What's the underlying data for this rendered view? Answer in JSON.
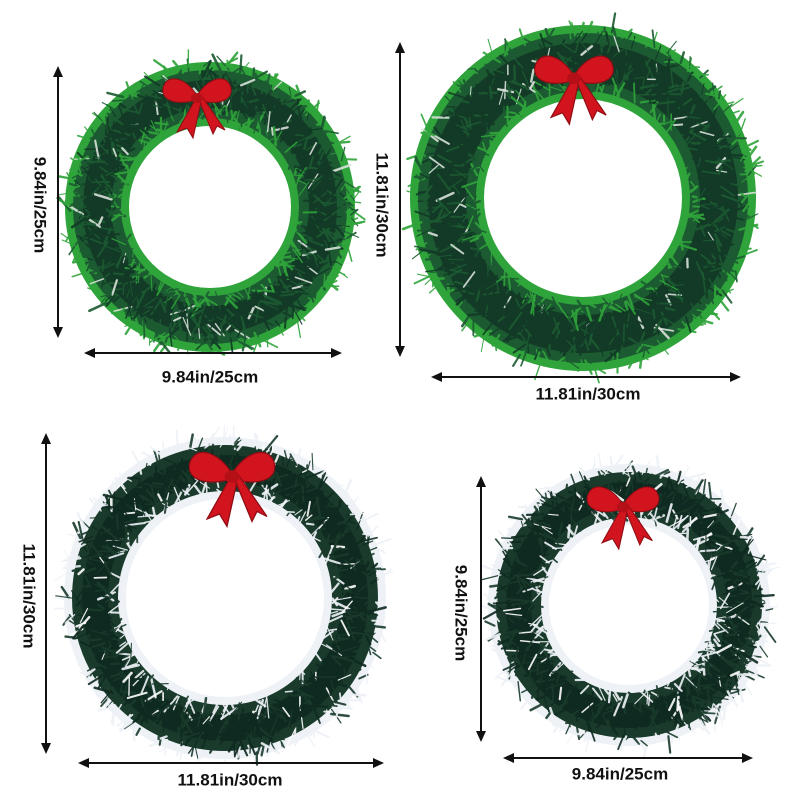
{
  "wreaths": [
    {
      "id": "small-green",
      "style": "green-tipped",
      "colors": {
        "inner": "#123a26",
        "mid": "#1c5a32",
        "tip": "#2fa43a",
        "highlight": "#d9e2da"
      },
      "bow_color": "#d1141e",
      "width_label": "9.84in/25cm",
      "height_label": "9.84in/25cm"
    },
    {
      "id": "large-green",
      "style": "green-tipped",
      "colors": {
        "inner": "#123a26",
        "mid": "#1c5a32",
        "tip": "#2fa43a",
        "highlight": "#d9e2da"
      },
      "bow_color": "#d1141e",
      "width_label": "11.81in/30cm",
      "height_label": "11.81in/30cm"
    },
    {
      "id": "large-snow",
      "style": "snow-tipped",
      "colors": {
        "inner": "#0f2a20",
        "mid": "#1a3b2c",
        "tip": "#eef2f7",
        "highlight": "#ffffff"
      },
      "bow_color": "#d1141e",
      "width_label": "11.81in/30cm",
      "height_label": "11.81in/30cm"
    },
    {
      "id": "small-snow",
      "style": "snow-tipped",
      "colors": {
        "inner": "#0f2a20",
        "mid": "#1a3b2c",
        "tip": "#eef2f7",
        "highlight": "#ffffff"
      },
      "bow_color": "#d1141e",
      "width_label": "9.84in/25cm",
      "height_label": "9.84in/25cm"
    }
  ]
}
